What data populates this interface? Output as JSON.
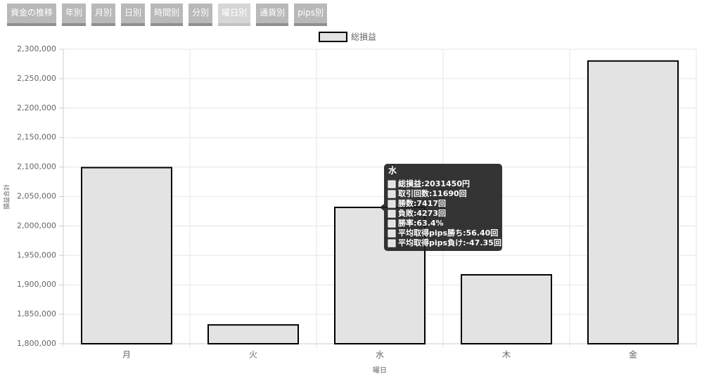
{
  "tabs": {
    "items": [
      "資金の推移",
      "年別",
      "月別",
      "日別",
      "時間別",
      "分別",
      "曜日別",
      "通貨別",
      "pips別"
    ],
    "active": 6
  },
  "chart_data": {
    "type": "bar",
    "categories": [
      "月",
      "火",
      "水",
      "木",
      "金"
    ],
    "series": [
      {
        "name": "総損益",
        "color": "#e3e3e3",
        "values": [
          2099000,
          1832000,
          2031450,
          1917000,
          2280000
        ]
      }
    ],
    "x_label": "曜日",
    "y_label": "損益合計",
    "ylim": [
      1800000,
      2300000
    ],
    "yticks": [
      {
        "value": 1800000,
        "label": "1,800,000"
      },
      {
        "value": 1850000,
        "label": "1,850,000"
      },
      {
        "value": 1900000,
        "label": "1,900,000"
      },
      {
        "value": 1950000,
        "label": "1,950,000"
      },
      {
        "value": 2000000,
        "label": "2,000,000"
      },
      {
        "value": 2050000,
        "label": "2,050,000"
      },
      {
        "value": 2100000,
        "label": "2,100,000"
      },
      {
        "value": 2150000,
        "label": "2,150,000"
      },
      {
        "value": 2200000,
        "label": "2,200,000"
      },
      {
        "value": 2250000,
        "label": "2,250,000"
      },
      {
        "value": 2300000,
        "label": "2,300,000"
      }
    ],
    "grid": true,
    "tooltip": {
      "category": 2,
      "title": "水",
      "lines": [
        "総損益:2031450円",
        "取引回数:11690回",
        "勝数:7417回",
        "負敗:4273回",
        "勝率:63.4%",
        "平均取得pips勝ち:56.40回",
        "平均取得pips負け:-47.35回"
      ]
    }
  }
}
